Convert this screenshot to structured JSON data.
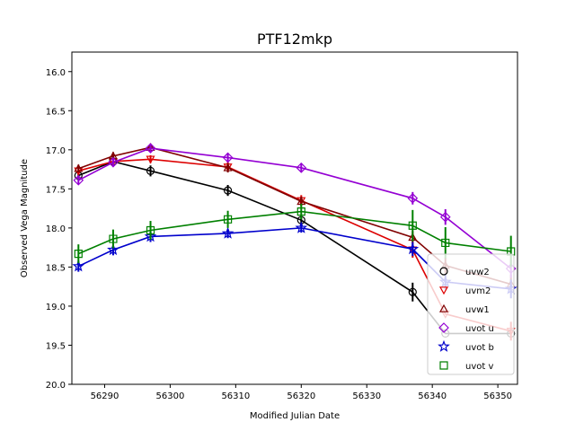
{
  "chart_data": {
    "type": "line",
    "title": "PTF12mkp",
    "xlabel": "Modified Julian Date",
    "ylabel": "Observed Vega Magnitude",
    "xlim": [
      56285,
      56353
    ],
    "ylim": [
      20.0,
      15.75
    ],
    "y_inverted": true,
    "grid": false,
    "legend_position": "bottom-right",
    "x_ticks": [
      56290,
      56300,
      56310,
      56320,
      56330,
      56340,
      56350
    ],
    "y_ticks": [
      16.0,
      16.5,
      17.0,
      17.5,
      18.0,
      18.5,
      19.0,
      19.5,
      20.0
    ],
    "x_tick_labels": [
      "56290",
      "56300",
      "56310",
      "56320",
      "56330",
      "56340",
      "56350"
    ],
    "y_tick_labels": [
      "16.0",
      "16.5",
      "17.0",
      "17.5",
      "18.0",
      "18.5",
      "19.0",
      "19.5",
      "20.0"
    ],
    "series": [
      {
        "name": "uvw2",
        "color": "#000000",
        "marker": "circle",
        "x": [
          56286,
          56291.3,
          56297,
          56308.8,
          56320,
          56337,
          56342,
          56352
        ],
        "y": [
          17.33,
          17.15,
          17.27,
          17.52,
          17.9,
          18.82,
          19.35,
          19.35
        ],
        "err": [
          0.06,
          0.06,
          0.07,
          0.07,
          0.07,
          0.12,
          0.0,
          0.0
        ]
      },
      {
        "name": "uvm2",
        "color": "#dd0000",
        "marker": "triangle-down",
        "x": [
          56286,
          56291.3,
          56297,
          56308.8,
          56320,
          56337,
          56342,
          56352
        ],
        "y": [
          17.27,
          17.15,
          17.12,
          17.22,
          17.65,
          18.28,
          19.1,
          19.32
        ],
        "err": [
          0.05,
          0.05,
          0.05,
          0.06,
          0.07,
          0.1,
          0.0,
          0.12
        ]
      },
      {
        "name": "uvw1",
        "color": "#800000",
        "marker": "triangle-up",
        "x": [
          56286,
          56291.3,
          56297,
          56308.8,
          56320,
          56337,
          56342,
          56352
        ],
        "y": [
          17.24,
          17.08,
          16.97,
          17.23,
          17.66,
          18.12,
          18.48,
          18.72
        ],
        "err": [
          0.05,
          0.05,
          0.05,
          0.06,
          0.06,
          0.08,
          0.1,
          0.12
        ]
      },
      {
        "name": "uvot u",
        "color": "#9400d3",
        "marker": "diamond",
        "x": [
          56286,
          56291.3,
          56297,
          56308.8,
          56320,
          56337,
          56342,
          56352
        ],
        "y": [
          17.39,
          17.16,
          16.98,
          17.1,
          17.23,
          17.62,
          17.86,
          18.52
        ],
        "err": [
          0.05,
          0.05,
          0.05,
          0.06,
          0.06,
          0.08,
          0.1,
          0.12
        ]
      },
      {
        "name": "uvot b",
        "color": "#0000cc",
        "marker": "star",
        "x": [
          56286,
          56291.3,
          56297,
          56308.8,
          56320,
          56337,
          56342,
          56352
        ],
        "y": [
          18.49,
          18.28,
          18.11,
          18.07,
          18.0,
          18.27,
          18.69,
          18.78
        ],
        "err": [
          0.07,
          0.07,
          0.07,
          0.06,
          0.06,
          0.09,
          0.1,
          0.12
        ]
      },
      {
        "name": "uvot v",
        "color": "#008000",
        "marker": "square",
        "x": [
          56286,
          56291.3,
          56297,
          56308.8,
          56320,
          56337,
          56342,
          56352
        ],
        "y": [
          18.33,
          18.14,
          18.03,
          17.89,
          17.79,
          17.97,
          18.19,
          18.3
        ],
        "err": [
          0.12,
          0.12,
          0.12,
          0.11,
          0.1,
          0.2,
          0.2,
          0.2
        ]
      }
    ]
  }
}
